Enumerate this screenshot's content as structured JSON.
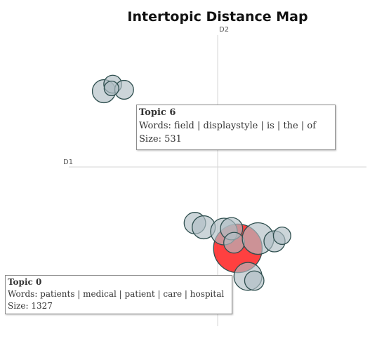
{
  "chart_data": {
    "type": "scatter",
    "title": "Intertopic Distance Map",
    "xlabel": "D1",
    "ylabel": "D2",
    "colors": {
      "bubble_fill": "#b0bec5",
      "bubble_stroke": "#2f4f4f",
      "selected_fill": "#ff2b2b",
      "axis": "#d6d6d6"
    },
    "points": [
      {
        "x": -9.0,
        "y": 5.4,
        "size": 300
      },
      {
        "x": -8.3,
        "y": 5.9,
        "size": 180
      },
      {
        "x": -7.4,
        "y": 5.5,
        "size": 200
      },
      {
        "x": -8.4,
        "y": 5.6,
        "size": 120
      },
      {
        "x": -1.8,
        "y": -4.0,
        "size": 260
      },
      {
        "x": -1.1,
        "y": -4.3,
        "size": 300
      },
      {
        "x": 0.5,
        "y": -4.6,
        "size": 400
      },
      {
        "x": 1.1,
        "y": -4.4,
        "size": 280
      },
      {
        "x": 1.3,
        "y": -5.4,
        "size": 240
      },
      {
        "x": 3.2,
        "y": -5.1,
        "size": 560
      },
      {
        "x": 4.5,
        "y": -5.3,
        "size": 250
      },
      {
        "x": 5.1,
        "y": -4.9,
        "size": 170
      },
      {
        "x": 2.4,
        "y": -7.8,
        "size": 440
      },
      {
        "x": 2.9,
        "y": -8.1,
        "size": 210
      }
    ],
    "highlighted": {
      "x": 1.6,
      "y": -5.8,
      "size": 1327
    }
  },
  "tooltips": [
    {
      "title": "Topic 6",
      "words": "Words: field | displaystyle | is | the | of",
      "size": "Size: 531"
    },
    {
      "title": "Topic 0",
      "words": "Words: patients | medical | patient | care | hospital",
      "size": "Size: 1327"
    }
  ]
}
